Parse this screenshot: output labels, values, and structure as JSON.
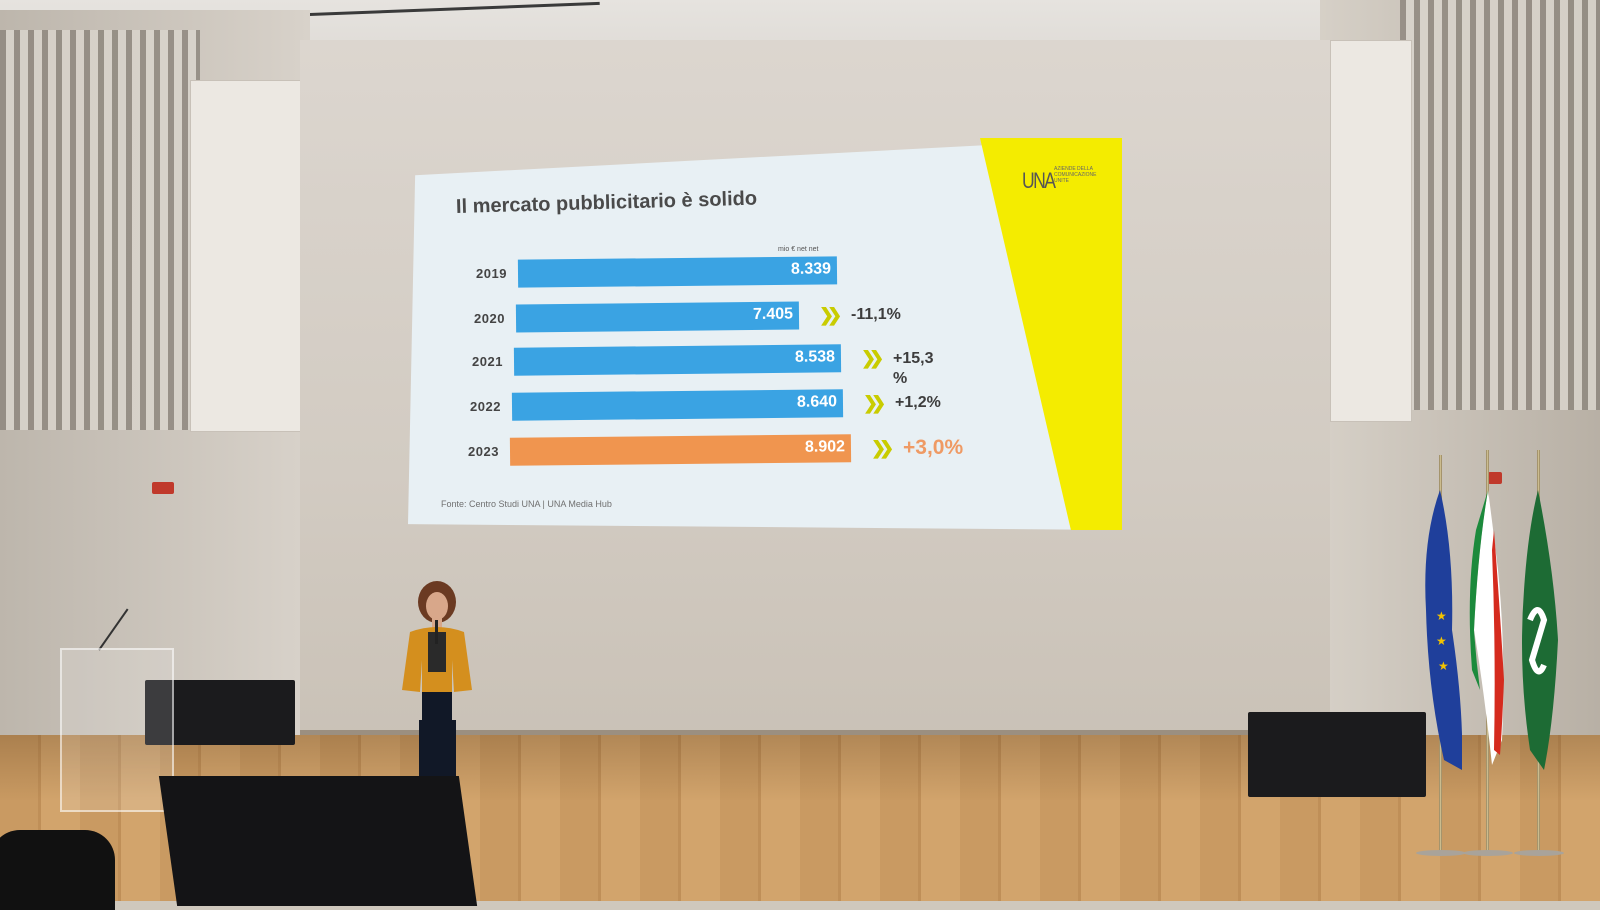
{
  "slide": {
    "title": "Il mercato pubblicitario è solido",
    "unit": "mio € net net",
    "logo": "UNA",
    "logo_tagline": "AZIENDE DELLA COMUNICAZIONE UNITE",
    "source": "Fonte: Centro Studi UNA | UNA Media Hub"
  },
  "chart_data": {
    "type": "bar",
    "orientation": "horizontal",
    "title": "Il mercato pubblicitario è solido",
    "unit": "mio € net net",
    "categories": [
      "2019",
      "2020",
      "2021",
      "2022",
      "2023"
    ],
    "values": [
      8339,
      7405,
      8538,
      8640,
      8902
    ],
    "value_labels": [
      "8.339",
      "7.405",
      "8.538",
      "8.640",
      "8.902"
    ],
    "change_labels": [
      "",
      "-11,1%",
      "+15,3 %",
      "+1,2%",
      "+3,0%"
    ],
    "bar_colors": [
      "#3aa3e3",
      "#3aa3e3",
      "#3aa3e3",
      "#3aa3e3",
      "#f0954f"
    ],
    "highlight_index": 4,
    "source": "Fonte: Centro Studi UNA | UNA Media Hub"
  },
  "colors": {
    "bar_blue": "#3aa3e3",
    "bar_orange": "#f0954f",
    "accent_yellow": "#f4ec00",
    "highlight_text": "#ef9a64"
  },
  "icons": [
    "double-chevron-right-icon"
  ]
}
